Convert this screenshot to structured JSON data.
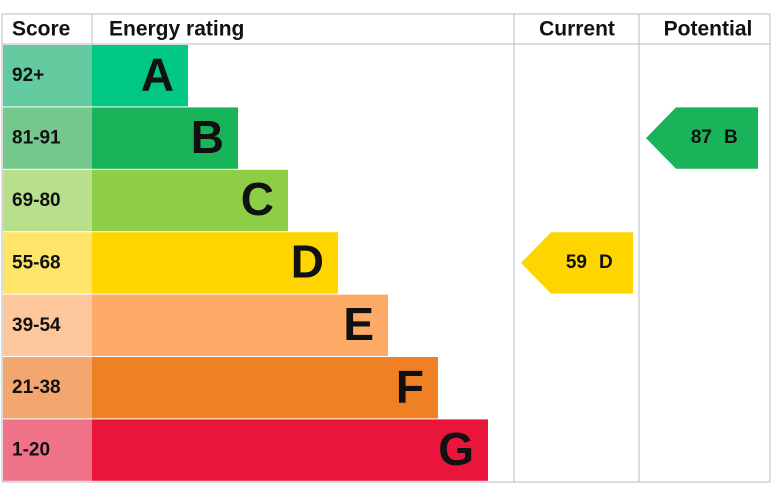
{
  "header": {
    "score": "Score",
    "rating": "Energy rating",
    "current": "Current",
    "potential": "Potential"
  },
  "bands": [
    {
      "score": "92+",
      "letter": "A",
      "color": "#00c781",
      "light": "#63cb9f"
    },
    {
      "score": "81-91",
      "letter": "B",
      "color": "#19b459",
      "light": "#74c88e"
    },
    {
      "score": "69-80",
      "letter": "C",
      "color": "#8dce46",
      "light": "#b8e08c"
    },
    {
      "score": "55-68",
      "letter": "D",
      "color": "#ffd500",
      "light": "#ffe46a"
    },
    {
      "score": "39-54",
      "letter": "E",
      "color": "#fcaa65",
      "light": "#fdc79b"
    },
    {
      "score": "21-38",
      "letter": "F",
      "color": "#ef8023",
      "light": "#f4a66f"
    },
    {
      "score": "1-20",
      "letter": "G",
      "color": "#e9153b",
      "light": "#f0738a"
    }
  ],
  "current": {
    "value": 59,
    "letter": "D"
  },
  "potential": {
    "value": 87,
    "letter": "B"
  }
}
